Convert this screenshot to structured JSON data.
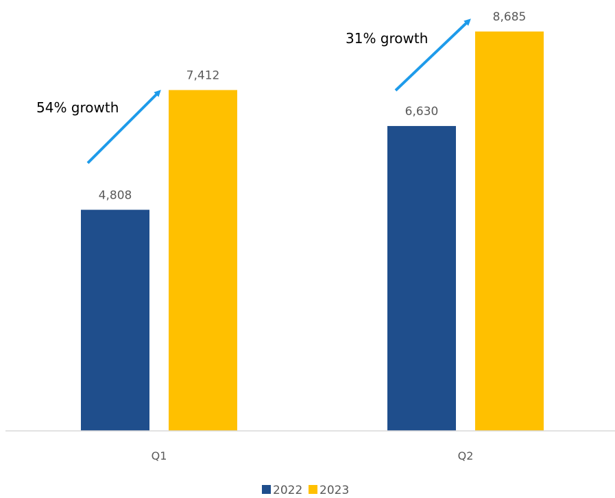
{
  "chart_data": {
    "type": "bar",
    "title": "",
    "xlabel": "",
    "ylabel": "",
    "categories": [
      "Q1",
      "Q2"
    ],
    "series": [
      {
        "name": "2022",
        "values": [
          4808,
          6630
        ],
        "labels": [
          "4,808",
          "6,630"
        ],
        "color": "#1F4E8C"
      },
      {
        "name": "2023",
        "values": [
          7412,
          8685
        ],
        "labels": [
          "7,412",
          "8,685"
        ],
        "color": "#FFC000"
      }
    ],
    "ylim": [
      0,
      10000
    ],
    "grid": false,
    "legend_position": "bottom-center",
    "annotations": [
      {
        "text": "54% growth",
        "category": "Q1",
        "arrow_color": "#1E9BEA"
      },
      {
        "text": "31% growth",
        "category": "Q2",
        "arrow_color": "#1E9BEA"
      }
    ]
  }
}
